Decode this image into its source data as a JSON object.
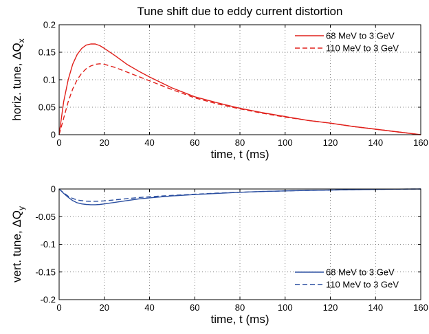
{
  "chart_data": [
    {
      "type": "line",
      "title": "Tune shift due to eddy current distortion",
      "xlabel": "time, t (ms)",
      "ylabel": "horiz. tune, ΔQ",
      "ylabel_sub": "x",
      "xlim": [
        0,
        160
      ],
      "ylim": [
        0,
        0.2
      ],
      "xticks": [
        0,
        20,
        40,
        60,
        80,
        100,
        120,
        140,
        160
      ],
      "yticks": [
        0,
        0.05,
        0.1,
        0.15,
        0.2
      ],
      "ytick_labels": [
        "0",
        "0.05",
        "0.1",
        "0.15",
        "0.2"
      ],
      "grid": true,
      "legend_position": "top-right",
      "x": [
        0,
        2,
        4,
        6,
        8,
        10,
        12,
        14,
        16,
        18,
        20,
        25,
        30,
        35,
        40,
        50,
        60,
        70,
        80,
        90,
        100,
        110,
        120,
        130,
        140,
        150,
        160
      ],
      "series": [
        {
          "name": "68 MeV to 3 GeV",
          "color": "#e0201b",
          "style": "solid",
          "values": [
            0,
            0.06,
            0.1,
            0.128,
            0.146,
            0.157,
            0.163,
            0.165,
            0.165,
            0.162,
            0.157,
            0.143,
            0.128,
            0.116,
            0.105,
            0.085,
            0.069,
            0.058,
            0.048,
            0.04,
            0.033,
            0.026,
            0.021,
            0.015,
            0.01,
            0.005,
            0
          ]
        },
        {
          "name": "110 MeV to 3 GeV",
          "color": "#e0201b",
          "style": "dashed",
          "values": [
            0,
            0.03,
            0.06,
            0.083,
            0.1,
            0.112,
            0.12,
            0.125,
            0.128,
            0.129,
            0.128,
            0.122,
            0.114,
            0.106,
            0.098,
            0.082,
            0.067,
            0.056,
            0.047,
            0.039,
            0.032,
            0.026,
            0.021,
            0.015,
            0.01,
            0.005,
            0
          ]
        }
      ]
    },
    {
      "type": "line",
      "title": "",
      "xlabel": "time, t (ms)",
      "ylabel": "vert. tune, ΔQ",
      "ylabel_sub": "y",
      "xlim": [
        0,
        160
      ],
      "ylim": [
        -0.2,
        0
      ],
      "xticks": [
        0,
        20,
        40,
        60,
        80,
        100,
        120,
        140,
        160
      ],
      "yticks": [
        -0.2,
        -0.15,
        -0.1,
        -0.05,
        0
      ],
      "ytick_labels": [
        "-0.2",
        "-0.15",
        "-0.1",
        "-0.05",
        "0"
      ],
      "grid": true,
      "legend_position": "bottom-right",
      "x": [
        0,
        2,
        4,
        6,
        8,
        10,
        12,
        14,
        16,
        18,
        20,
        25,
        30,
        35,
        40,
        50,
        60,
        70,
        80,
        90,
        100,
        110,
        120,
        130,
        140,
        150,
        160
      ],
      "series": [
        {
          "name": "68 MeV to 3 GeV",
          "color": "#2a4ea0",
          "style": "solid",
          "values": [
            0,
            -0.008,
            -0.015,
            -0.021,
            -0.025,
            -0.027,
            -0.028,
            -0.0285,
            -0.0285,
            -0.028,
            -0.027,
            -0.024,
            -0.021,
            -0.018,
            -0.016,
            -0.0125,
            -0.01,
            -0.008,
            -0.006,
            -0.0045,
            -0.0035,
            -0.0025,
            -0.002,
            -0.0012,
            -0.0006,
            -0.0002,
            0
          ]
        },
        {
          "name": "110 MeV to 3 GeV",
          "color": "#2a4ea0",
          "style": "dashed",
          "values": [
            0,
            -0.007,
            -0.013,
            -0.017,
            -0.02,
            -0.021,
            -0.022,
            -0.0222,
            -0.0222,
            -0.022,
            -0.0215,
            -0.0195,
            -0.0175,
            -0.0155,
            -0.014,
            -0.0115,
            -0.0095,
            -0.0075,
            -0.006,
            -0.0045,
            -0.0035,
            -0.0025,
            -0.002,
            -0.0012,
            -0.0006,
            -0.0002,
            0
          ]
        }
      ]
    }
  ]
}
